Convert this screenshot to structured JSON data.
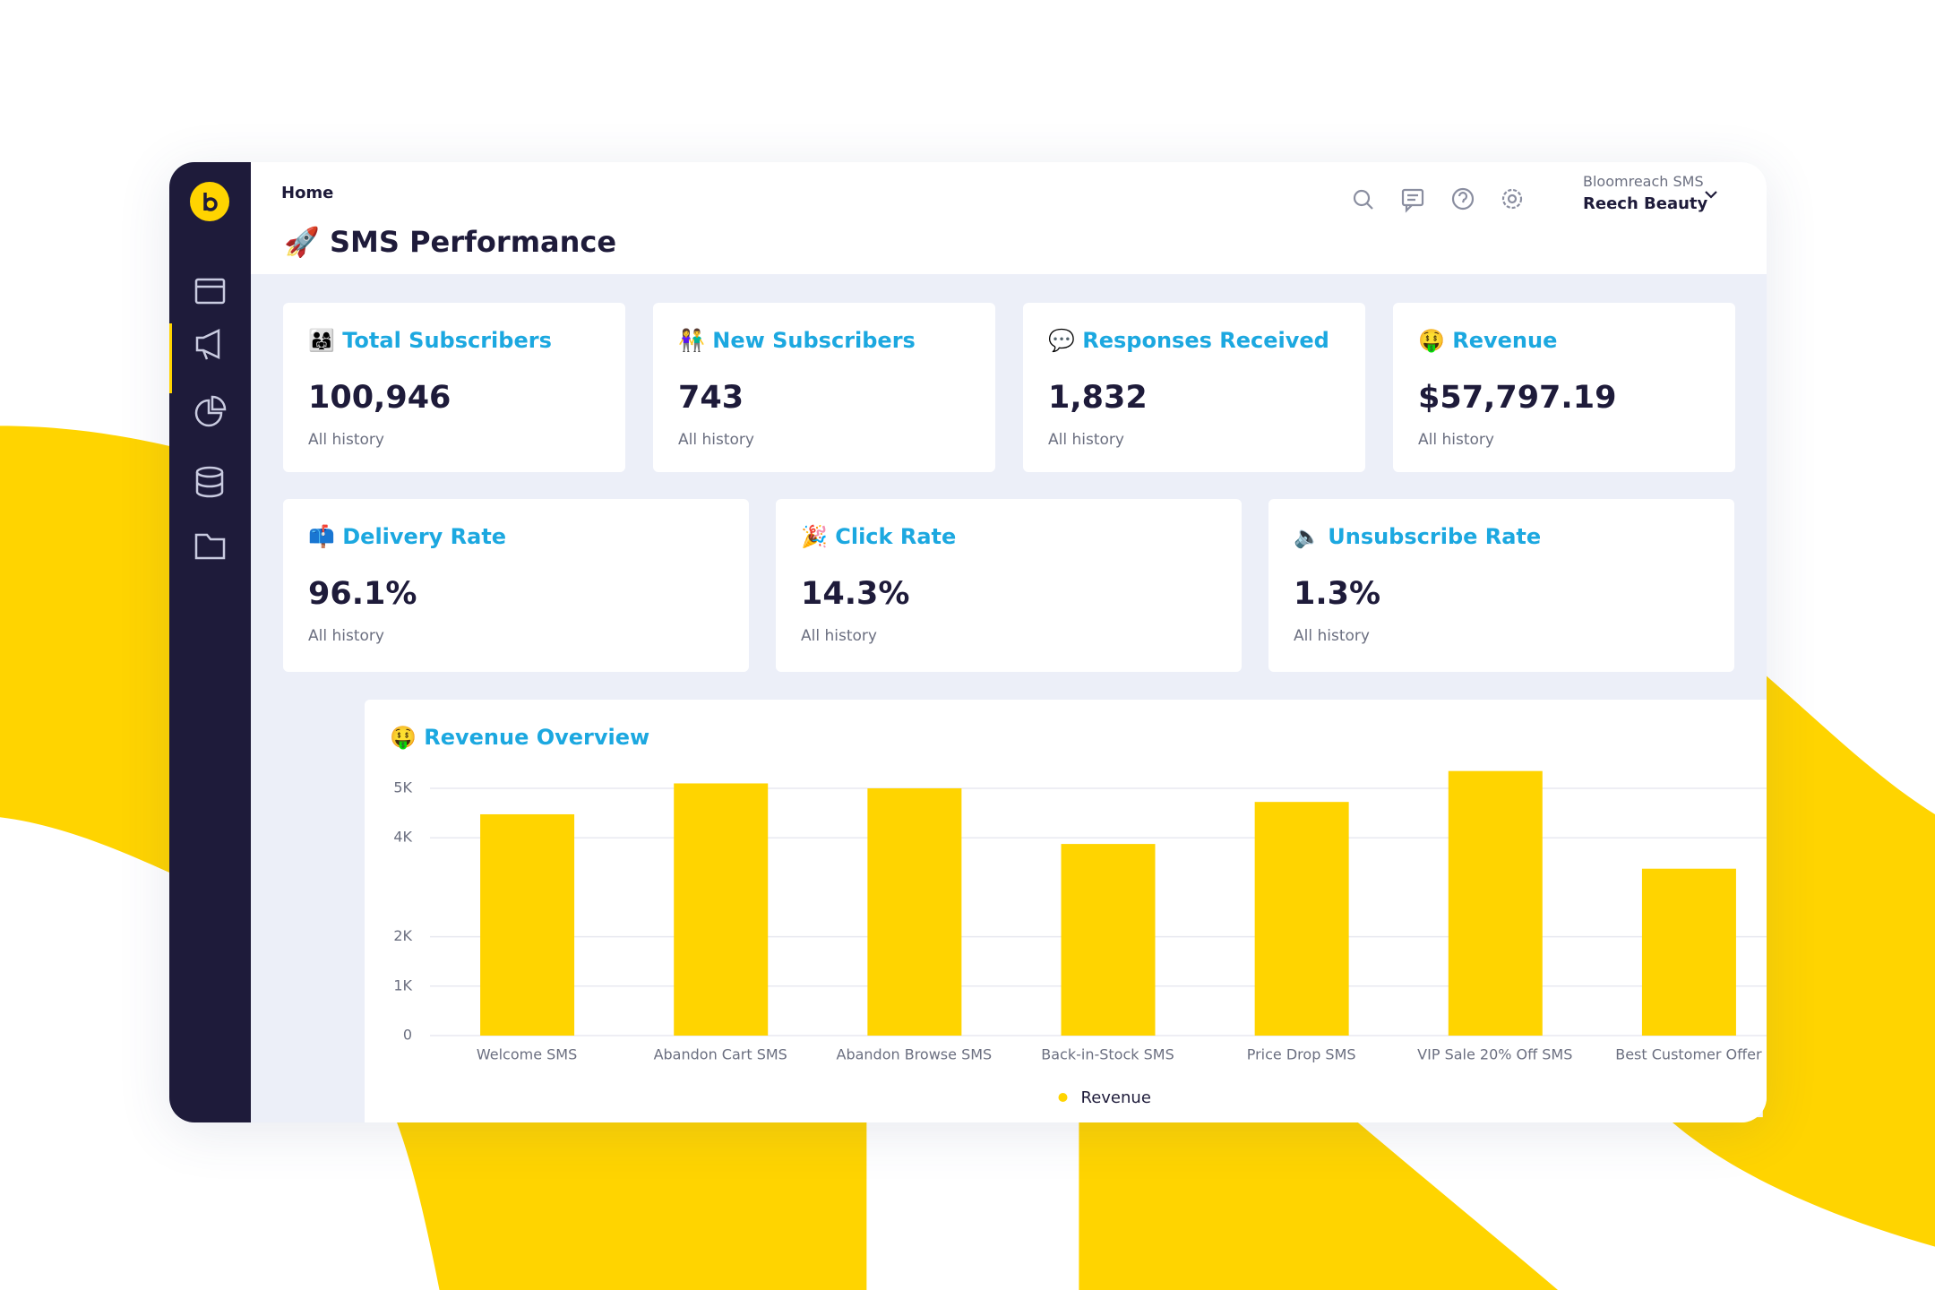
{
  "header": {
    "breadcrumb": "Home",
    "title": "🚀 SMS Performance"
  },
  "account": {
    "org": "Bloomreach SMS",
    "name": "Reech Beauty"
  },
  "cards_top": [
    {
      "title": "👨‍👩‍👧 Total Subscribers",
      "value": "100,946",
      "note": "All history"
    },
    {
      "title": "👫 New Subscribers",
      "value": "743",
      "note": "All history"
    },
    {
      "title": "💬 Responses Received",
      "value": "1,832",
      "note": "All history"
    },
    {
      "title": "🤑 Revenue",
      "value": "$57,797.19",
      "note": "All history"
    }
  ],
  "cards_bottom": [
    {
      "title": "📫 Delivery Rate",
      "value": "96.1%",
      "note": "All history"
    },
    {
      "title": "🎉 Click Rate",
      "value": "14.3%",
      "note": "All history"
    },
    {
      "title": "🔈 Unsubscribe Rate",
      "value": "1.3%",
      "note": "All history"
    }
  ],
  "chart_data": {
    "type": "bar",
    "title": "🤑 Revenue Overview",
    "categories": [
      "Welcome SMS",
      "Abandon Cart SMS",
      "Abandon Browse SMS",
      "Back-in-Stock SMS",
      "Price Drop SMS",
      "VIP Sale 20% Off SMS",
      "Best Customer Offer"
    ],
    "series": [
      {
        "name": "Revenue",
        "color": "#ffd400",
        "values": [
          4475,
          5100,
          5000,
          3875,
          4725,
          5350,
          3375
        ]
      }
    ],
    "ylim": [
      0,
      5500
    ],
    "yticks": [
      0,
      {
        "value": 1000,
        "label": "1K"
      },
      {
        "value": 2000,
        "label": "2K"
      },
      {
        "value": 4000,
        "label": "4K"
      },
      {
        "value": 5000,
        "label": "5K"
      }
    ],
    "grid": true,
    "legend": "bottom"
  }
}
